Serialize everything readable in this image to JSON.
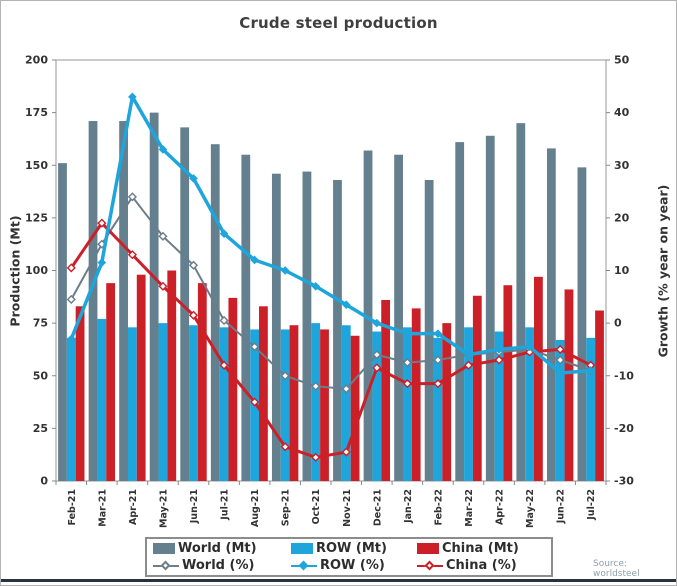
{
  "header": {
    "title": "Crude steel production"
  },
  "axes": {
    "left_title": "Production (Mt)",
    "right_title": "Growth (% year on year)"
  },
  "source_note": "Source: worldsteel",
  "colors": {
    "world_bar": "#64808f",
    "row_bar": "#1ea5dc",
    "china_bar": "#cc2028",
    "world_line": "#6b7c8a",
    "row_line": "#1ea5dc",
    "china_line": "#cc2028",
    "axis_text": "#333333",
    "plot_border": "#a8a8a8",
    "tick": "#888888"
  },
  "legend": {
    "items": [
      {
        "label": "World (Mt)",
        "type": "bar",
        "series": "world"
      },
      {
        "label": "ROW (Mt)",
        "type": "bar",
        "series": "row"
      },
      {
        "label": "China (Mt)",
        "type": "bar",
        "series": "china"
      },
      {
        "label": "World (%)",
        "type": "line",
        "series": "world"
      },
      {
        "label": "ROW (%)",
        "type": "line",
        "series": "row"
      },
      {
        "label": "China (%)",
        "type": "line",
        "series": "china"
      }
    ]
  },
  "chart_data": {
    "type": "combo-bar-line",
    "title": "Crude steel production",
    "grid": false,
    "legend_position": "bottom",
    "source": "Source: worldsteel",
    "categories": [
      "Feb-21",
      "Mar-21",
      "Apr-21",
      "May-21",
      "Jun-21",
      "Jul-21",
      "Aug-21",
      "Sep-21",
      "Oct-21",
      "Nov-21",
      "Dec-21",
      "Jan-22",
      "Feb-22",
      "Mar-22",
      "Apr-22",
      "May-22",
      "Jun-22",
      "Jul-22"
    ],
    "y_left": {
      "label": "Production (Mt)",
      "min": 0,
      "max": 200,
      "tick_step": 25
    },
    "y_right": {
      "label": "Growth (% year on year)",
      "min": -30,
      "max": 50,
      "tick_step": 10
    },
    "bar_series": [
      {
        "name": "World (Mt)",
        "axis": "left",
        "color": "#64808f",
        "values": [
          151,
          171,
          171,
          175,
          168,
          160,
          155,
          146,
          147,
          143,
          157,
          155,
          143,
          161,
          164,
          170,
          158,
          149
        ]
      },
      {
        "name": "ROW (Mt)",
        "axis": "left",
        "color": "#1ea5dc",
        "values": [
          68,
          77,
          73,
          75,
          74,
          73,
          72,
          72,
          75,
          74,
          71,
          73,
          68,
          73,
          71,
          73,
          67,
          68
        ]
      },
      {
        "name": "China (Mt)",
        "axis": "left",
        "color": "#cc2028",
        "values": [
          83,
          94,
          98,
          100,
          94,
          87,
          83,
          74,
          72,
          69,
          86,
          82,
          75,
          88,
          93,
          97,
          91,
          81
        ]
      }
    ],
    "line_series": [
      {
        "name": "World (%)",
        "axis": "right",
        "color": "#6b7c8a",
        "marker": "open",
        "width": 2,
        "values": [
          4.5,
          15,
          24,
          16.5,
          11,
          0.5,
          -4.5,
          -10,
          -12,
          -12.5,
          -6,
          -7.5,
          -7,
          -6,
          -5.5,
          -5,
          -7,
          -9
        ]
      },
      {
        "name": "China (%)",
        "axis": "right",
        "color": "#cc2028",
        "marker": "open",
        "width": 3,
        "values": [
          10.5,
          19,
          13,
          7,
          1.5,
          -8,
          -15,
          -23.5,
          -25.5,
          -24.5,
          -8.5,
          -11.5,
          -11.5,
          -8,
          -7,
          -5.5,
          -5,
          -8
        ]
      },
      {
        "name": "ROW (%)",
        "axis": "right",
        "color": "#1ea5dc",
        "marker": "solid",
        "width": 3.5,
        "values": [
          -3,
          11.5,
          43,
          33,
          27.5,
          17,
          12,
          10,
          7,
          3.5,
          0,
          -2,
          -2,
          -6,
          -5,
          -4.5,
          -9.5,
          -9
        ]
      }
    ]
  }
}
